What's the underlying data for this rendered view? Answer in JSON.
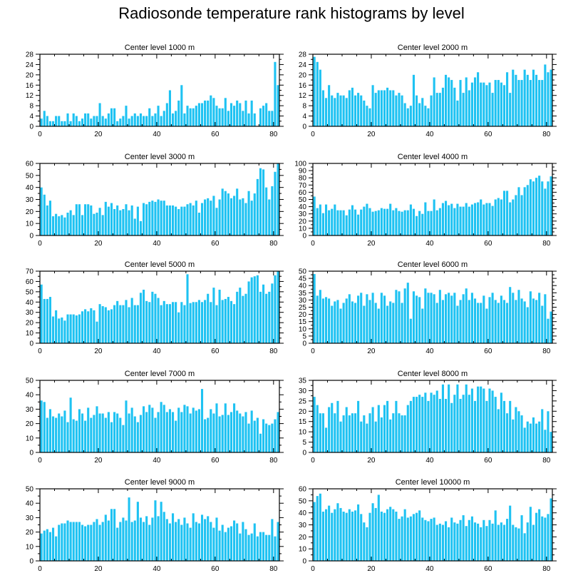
{
  "title": "Radiosonde temperature rank histograms by level",
  "bar_color": "#1ec2f2",
  "chart_data": [
    {
      "type": "bar",
      "title": "Center level 1000 m",
      "xlabel": "",
      "ylabel": "",
      "xlim": [
        0,
        82
      ],
      "ylim": [
        0,
        28
      ],
      "xticks": [
        0,
        20,
        40,
        60,
        80
      ],
      "yticks": [
        0,
        4,
        8,
        12,
        16,
        20,
        24,
        28
      ],
      "values": [
        3,
        6,
        4,
        2,
        2,
        4,
        4,
        2,
        2,
        5,
        2,
        5,
        4,
        2,
        3,
        5,
        5,
        3,
        4,
        4,
        9,
        4,
        3,
        5,
        7,
        7,
        2,
        3,
        4,
        8,
        3,
        4,
        5,
        4,
        5,
        4,
        4,
        7,
        4,
        5,
        8,
        4,
        6,
        9,
        14,
        5,
        6,
        10,
        16,
        5,
        8,
        7,
        7,
        8,
        9,
        9,
        10,
        10,
        12,
        11,
        8,
        7,
        7,
        11,
        6,
        9,
        8,
        10,
        9,
        6,
        10,
        5,
        10,
        5,
        0,
        7,
        8,
        9,
        6,
        6,
        25,
        16
      ]
    },
    {
      "type": "bar",
      "title": "Center level 2000 m",
      "xlabel": "",
      "ylabel": "",
      "xlim": [
        0,
        82
      ],
      "ylim": [
        0,
        28
      ],
      "xticks": [
        0,
        20,
        40,
        60,
        80
      ],
      "yticks": [
        0,
        4,
        8,
        12,
        16,
        20,
        24,
        28
      ],
      "values": [
        27,
        25,
        22,
        14,
        11,
        16,
        12,
        11,
        13,
        12,
        12,
        11,
        14,
        15,
        12,
        13,
        12,
        10,
        8,
        7,
        16,
        13,
        14,
        14,
        14,
        15,
        14,
        14,
        12,
        13,
        12,
        9,
        7,
        8,
        20,
        12,
        9,
        11,
        8,
        7,
        12,
        19,
        13,
        13,
        15,
        20,
        19,
        18,
        15,
        10,
        18,
        13,
        19,
        14,
        17,
        19,
        21,
        17,
        17,
        16,
        17,
        13,
        18,
        18,
        17,
        16,
        21,
        13,
        22,
        20,
        18,
        18,
        22,
        20,
        18,
        22,
        20,
        18,
        18,
        24,
        21,
        22
      ]
    },
    {
      "type": "bar",
      "title": "Center level 3000 m",
      "xlabel": "",
      "ylabel": "",
      "xlim": [
        0,
        82
      ],
      "ylim": [
        0,
        60
      ],
      "xticks": [
        0,
        20,
        40,
        60,
        80
      ],
      "yticks": [
        0,
        10,
        20,
        30,
        40,
        50,
        60
      ],
      "values": [
        40,
        34,
        25,
        29,
        16,
        18,
        16,
        17,
        15,
        19,
        21,
        17,
        26,
        26,
        17,
        26,
        26,
        25,
        18,
        19,
        23,
        17,
        28,
        24,
        27,
        22,
        25,
        21,
        22,
        26,
        21,
        25,
        14,
        24,
        12,
        27,
        26,
        28,
        29,
        28,
        30,
        29,
        29,
        25,
        25,
        25,
        24,
        22,
        24,
        24,
        26,
        27,
        25,
        29,
        19,
        27,
        30,
        31,
        29,
        33,
        23,
        30,
        39,
        37,
        35,
        31,
        33,
        39,
        30,
        31,
        27,
        37,
        29,
        35,
        47,
        56,
        55,
        40,
        30,
        41,
        53,
        60
      ]
    },
    {
      "type": "bar",
      "title": "Center level 4000 m",
      "xlabel": "",
      "ylabel": "",
      "xlim": [
        0,
        82
      ],
      "ylim": [
        0,
        100
      ],
      "xticks": [
        0,
        20,
        40,
        60,
        80
      ],
      "yticks": [
        0,
        10,
        20,
        30,
        40,
        50,
        60,
        70,
        80,
        90,
        100
      ],
      "values": [
        54,
        38,
        43,
        31,
        43,
        35,
        37,
        43,
        35,
        35,
        35,
        28,
        36,
        42,
        36,
        29,
        36,
        40,
        44,
        38,
        33,
        34,
        35,
        38,
        37,
        37,
        44,
        35,
        38,
        34,
        33,
        35,
        35,
        43,
        37,
        27,
        34,
        30,
        46,
        34,
        34,
        50,
        35,
        38,
        45,
        48,
        42,
        44,
        38,
        44,
        40,
        40,
        45,
        40,
        43,
        45,
        46,
        50,
        43,
        45,
        45,
        41,
        50,
        52,
        50,
        62,
        62,
        46,
        50,
        56,
        67,
        56,
        67,
        70,
        78,
        75,
        80,
        83,
        75,
        65,
        75,
        82
      ]
    },
    {
      "type": "bar",
      "title": "Center level 5000 m",
      "xlabel": "",
      "ylabel": "",
      "xlim": [
        0,
        82
      ],
      "ylim": [
        0,
        70
      ],
      "xticks": [
        0,
        20,
        40,
        60,
        80
      ],
      "yticks": [
        0,
        10,
        20,
        30,
        40,
        50,
        60,
        70
      ],
      "values": [
        57,
        43,
        43,
        45,
        26,
        32,
        24,
        25,
        22,
        28,
        28,
        28,
        27,
        28,
        31,
        33,
        31,
        34,
        32,
        21,
        38,
        36,
        35,
        32,
        33,
        37,
        41,
        37,
        37,
        42,
        35,
        44,
        37,
        37,
        49,
        52,
        41,
        40,
        50,
        48,
        44,
        37,
        41,
        38,
        38,
        40,
        40,
        30,
        40,
        37,
        67,
        39,
        40,
        40,
        42,
        40,
        42,
        48,
        40,
        54,
        37,
        52,
        42,
        43,
        45,
        41,
        38,
        50,
        54,
        46,
        48,
        60,
        64,
        65,
        66,
        50,
        57,
        48,
        50,
        58,
        66,
        70
      ]
    },
    {
      "type": "bar",
      "title": "Center level 6000 m",
      "xlabel": "",
      "ylabel": "",
      "xlim": [
        0,
        82
      ],
      "ylim": [
        0,
        50
      ],
      "xticks": [
        0,
        20,
        40,
        60,
        80
      ],
      "yticks": [
        0,
        5,
        10,
        15,
        20,
        25,
        30,
        35,
        40,
        45,
        50
      ],
      "values": [
        48,
        33,
        37,
        31,
        32,
        31,
        26,
        29,
        30,
        24,
        28,
        31,
        34,
        29,
        28,
        33,
        35,
        26,
        34,
        30,
        35,
        28,
        24,
        35,
        33,
        26,
        29,
        28,
        37,
        36,
        28,
        38,
        42,
        17,
        36,
        33,
        32,
        24,
        38,
        35,
        35,
        34,
        28,
        37,
        30,
        34,
        35,
        33,
        35,
        26,
        30,
        34,
        38,
        30,
        35,
        31,
        28,
        28,
        33,
        24,
        32,
        35,
        30,
        28,
        33,
        30,
        28,
        39,
        35,
        30,
        37,
        31,
        29,
        25,
        36,
        31,
        30,
        35,
        26,
        34,
        17,
        22
      ]
    },
    {
      "type": "bar",
      "title": "Center level 7000 m",
      "xlabel": "",
      "ylabel": "",
      "xlim": [
        0,
        82
      ],
      "ylim": [
        0,
        50
      ],
      "xticks": [
        0,
        20,
        40,
        60,
        80
      ],
      "yticks": [
        0,
        10,
        20,
        30,
        40,
        50
      ],
      "values": [
        36,
        35,
        24,
        30,
        25,
        24,
        27,
        25,
        29,
        21,
        38,
        23,
        22,
        30,
        27,
        22,
        31,
        24,
        26,
        32,
        27,
        27,
        24,
        28,
        21,
        28,
        27,
        24,
        19,
        36,
        27,
        31,
        25,
        21,
        26,
        32,
        28,
        33,
        31,
        24,
        28,
        35,
        33,
        28,
        30,
        28,
        22,
        31,
        28,
        33,
        32,
        27,
        31,
        29,
        30,
        44,
        23,
        24,
        30,
        27,
        34,
        25,
        26,
        34,
        26,
        28,
        34,
        29,
        27,
        25,
        28,
        20,
        29,
        22,
        24,
        13,
        23,
        20,
        19,
        20,
        23,
        28
      ]
    },
    {
      "type": "bar",
      "title": "Center level 8000 m",
      "xlabel": "",
      "ylabel": "",
      "xlim": [
        0,
        82
      ],
      "ylim": [
        0,
        35
      ],
      "xticks": [
        0,
        20,
        40,
        60,
        80
      ],
      "yticks": [
        0,
        5,
        10,
        15,
        20,
        25,
        30,
        35
      ],
      "values": [
        27,
        23,
        19,
        19,
        12,
        22,
        24,
        19,
        25,
        15,
        18,
        22,
        18,
        19,
        19,
        25,
        15,
        18,
        14,
        19,
        22,
        15,
        23,
        17,
        23,
        25,
        16,
        19,
        25,
        19,
        18,
        18,
        23,
        25,
        27,
        27,
        28,
        27,
        29,
        25,
        29,
        28,
        30,
        26,
        33,
        26,
        33,
        24,
        28,
        33,
        26,
        28,
        33,
        28,
        31,
        25,
        32,
        32,
        31,
        25,
        31,
        30,
        27,
        21,
        29,
        25,
        19,
        25,
        16,
        22,
        20,
        18,
        12,
        15,
        14,
        17,
        14,
        15,
        21,
        11,
        20,
        10
      ]
    },
    {
      "type": "bar",
      "title": "Center level 9000 m",
      "xlabel": "",
      "ylabel": "",
      "xlim": [
        0,
        82
      ],
      "ylim": [
        0,
        50
      ],
      "xticks": [
        0,
        20,
        40,
        60,
        80
      ],
      "yticks": [
        0,
        10,
        20,
        30,
        40,
        50
      ],
      "values": [
        19,
        21,
        22,
        20,
        23,
        17,
        25,
        26,
        26,
        28,
        27,
        27,
        27,
        27,
        25,
        24,
        25,
        25,
        27,
        29,
        25,
        27,
        32,
        28,
        36,
        36,
        23,
        27,
        30,
        28,
        44,
        27,
        28,
        41,
        30,
        27,
        31,
        25,
        30,
        42,
        31,
        41,
        34,
        29,
        26,
        33,
        27,
        29,
        25,
        30,
        26,
        23,
        33,
        27,
        26,
        32,
        29,
        31,
        27,
        23,
        30,
        21,
        25,
        20,
        23,
        24,
        28,
        26,
        19,
        27,
        22,
        18,
        19,
        26,
        17,
        20,
        20,
        18,
        18,
        29,
        17,
        27
      ]
    },
    {
      "type": "bar",
      "title": "Center level 10000 m",
      "xlabel": "",
      "ylabel": "",
      "xlim": [
        0,
        82
      ],
      "ylim": [
        0,
        60
      ],
      "xticks": [
        0,
        20,
        40,
        60,
        80
      ],
      "yticks": [
        0,
        10,
        20,
        30,
        40,
        50,
        60
      ],
      "values": [
        49,
        54,
        56,
        41,
        43,
        46,
        40,
        43,
        48,
        44,
        41,
        40,
        43,
        41,
        42,
        47,
        39,
        32,
        28,
        40,
        48,
        44,
        55,
        41,
        40,
        43,
        45,
        43,
        41,
        35,
        37,
        43,
        36,
        37,
        39,
        40,
        42,
        36,
        34,
        33,
        35,
        36,
        30,
        31,
        30,
        33,
        28,
        36,
        32,
        31,
        34,
        38,
        29,
        34,
        37,
        32,
        31,
        28,
        34,
        29,
        34,
        31,
        42,
        30,
        32,
        30,
        35,
        46,
        30,
        28,
        27,
        38,
        23,
        32,
        45,
        30,
        40,
        43,
        37,
        36,
        39,
        52
      ]
    }
  ]
}
